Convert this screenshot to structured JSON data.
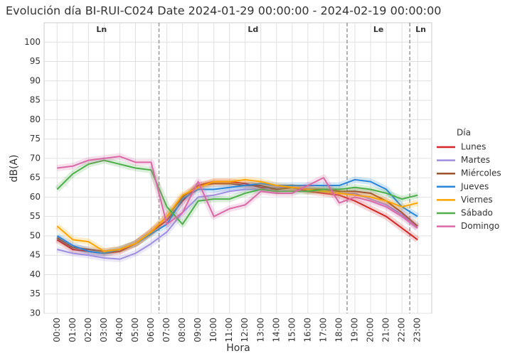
{
  "chart_data": {
    "type": "line",
    "title": "Evolución día BI-RUI-C024 Date 2024-01-29 00:00:00 - 2024-02-19 00:00:00",
    "xlabel": "Hora",
    "ylabel": "dB(A)",
    "legend_title": "Día",
    "legend": "right",
    "grid": true,
    "categories": [
      "00:00",
      "01:00",
      "02:00",
      "03:00",
      "04:00",
      "05:00",
      "06:00",
      "07:00",
      "08:00",
      "09:00",
      "10:00",
      "11:00",
      "12:00",
      "13:00",
      "14:00",
      "15:00",
      "16:00",
      "17:00",
      "18:00",
      "19:00",
      "20:00",
      "21:00",
      "22:00",
      "23:00"
    ],
    "ylim": [
      30,
      105
    ],
    "yticks": [
      30,
      35,
      40,
      45,
      50,
      55,
      60,
      65,
      70,
      75,
      80,
      85,
      90,
      95,
      100
    ],
    "period_bounds": [
      6.5,
      18.5,
      22.5
    ],
    "periods": [
      "Ln",
      "Ld",
      "Le",
      "Ln"
    ],
    "series": [
      {
        "name": "Lunes",
        "color": "#d62728",
        "values": [
          49,
          46.5,
          46,
          45.5,
          46,
          48,
          51,
          54,
          59,
          63,
          64,
          64,
          63.5,
          62.5,
          62,
          62.5,
          61.5,
          61,
          60.5,
          59,
          57,
          55,
          52,
          49
        ]
      },
      {
        "name": "Martes",
        "color": "#9f8fe0",
        "values": [
          46.5,
          45.5,
          45,
          44.3,
          44,
          45.5,
          48,
          51,
          56,
          60,
          60.5,
          61.5,
          62,
          62,
          62.5,
          62.5,
          62,
          61.5,
          61,
          61,
          59.5,
          58,
          55.5,
          52
        ]
      },
      {
        "name": "Miércoles",
        "color": "#a0522d",
        "values": [
          49.5,
          47,
          46.5,
          46,
          46.5,
          48,
          51,
          55,
          60,
          63,
          63.5,
          63.5,
          63,
          63,
          62,
          62.5,
          62,
          62,
          61.5,
          61.5,
          61,
          59,
          56,
          52.5
        ]
      },
      {
        "name": "Jueves",
        "color": "#2a86d9",
        "values": [
          50,
          47.5,
          46,
          45.5,
          46.5,
          48,
          50.5,
          53,
          59.5,
          62,
          62,
          62.5,
          63,
          63.5,
          63,
          63,
          63,
          63,
          63,
          64.5,
          64,
          62,
          57.5,
          55
        ]
      },
      {
        "name": "Viernes",
        "color": "#ffa500",
        "values": [
          52.5,
          49,
          48.5,
          46,
          46.5,
          48,
          51,
          55,
          60.5,
          62.5,
          64,
          64,
          64.5,
          64,
          63,
          62.5,
          62,
          61.5,
          61,
          60.5,
          60,
          59,
          57.5,
          58.5
        ]
      },
      {
        "name": "Sábado",
        "color": "#4daf4a",
        "values": [
          62,
          66,
          68.5,
          69.5,
          68.5,
          67.5,
          67,
          57.5,
          53,
          59,
          59.5,
          59.5,
          61,
          62,
          61.5,
          61.5,
          61.5,
          62,
          62,
          62.5,
          62,
          61,
          59.5,
          60.5
        ]
      },
      {
        "name": "Domingo",
        "color": "#d96aa7",
        "values": [
          67.5,
          68,
          69.5,
          70,
          70.5,
          69,
          69,
          53,
          56,
          64,
          55,
          57,
          58,
          61.5,
          61,
          61,
          63,
          65,
          58.5,
          60,
          59,
          57.5,
          55,
          52
        ]
      }
    ]
  }
}
